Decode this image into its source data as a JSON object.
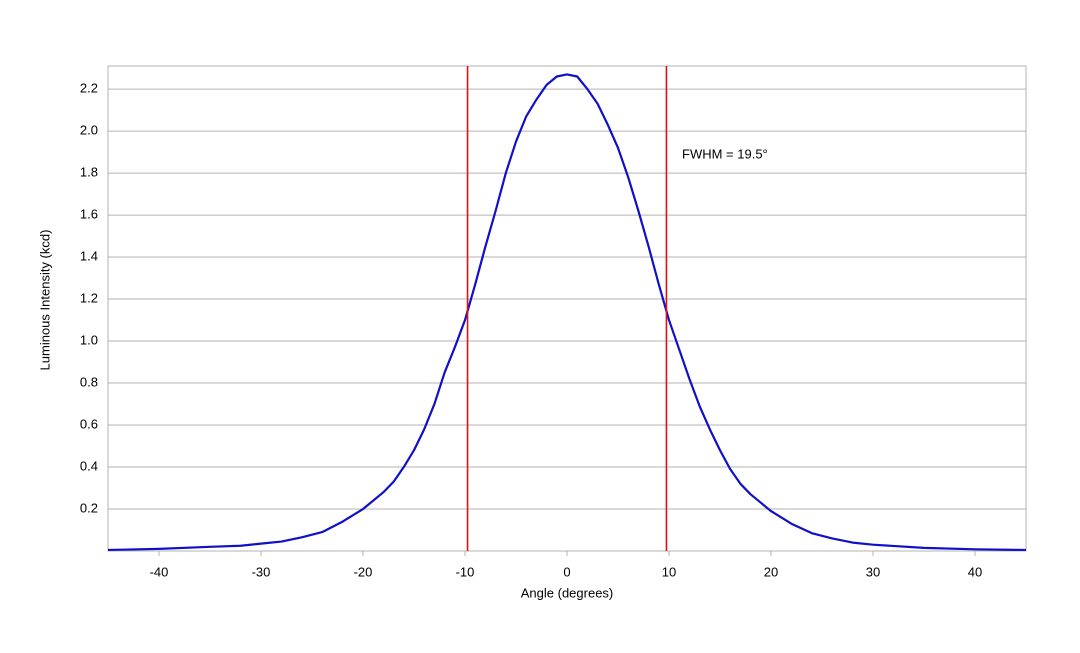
{
  "chart_data": {
    "type": "line",
    "xlabel": "Angle (degrees)",
    "ylabel": "Luminous Intensity (kcd)",
    "annotation": "FWHM = 19.5°",
    "x": [
      -45,
      -40,
      -35,
      -32,
      -30,
      -28,
      -26,
      -24,
      -22,
      -20,
      -19,
      -18,
      -17,
      -16,
      -15,
      -14,
      -13,
      -12,
      -11,
      -10,
      -9,
      -8,
      -7,
      -6,
      -5,
      -4,
      -3,
      -2,
      -1,
      0,
      1,
      2,
      3,
      4,
      5,
      6,
      7,
      8,
      9,
      10,
      11,
      12,
      13,
      14,
      15,
      16,
      17,
      18,
      19,
      20,
      22,
      24,
      26,
      28,
      30,
      35,
      40,
      45
    ],
    "values": [
      0.005,
      0.01,
      0.02,
      0.025,
      0.035,
      0.045,
      0.065,
      0.09,
      0.14,
      0.2,
      0.24,
      0.28,
      0.33,
      0.4,
      0.48,
      0.58,
      0.7,
      0.85,
      0.97,
      1.1,
      1.27,
      1.45,
      1.62,
      1.8,
      1.95,
      2.07,
      2.15,
      2.22,
      2.26,
      2.27,
      2.26,
      2.2,
      2.13,
      2.03,
      1.92,
      1.78,
      1.62,
      1.45,
      1.27,
      1.1,
      0.96,
      0.82,
      0.69,
      0.58,
      0.48,
      0.39,
      0.32,
      0.27,
      0.23,
      0.19,
      0.13,
      0.085,
      0.06,
      0.04,
      0.03,
      0.015,
      0.008,
      0.005
    ],
    "color": "#1010c8",
    "vlines": [
      {
        "x": -9.75,
        "color": "#e01010"
      },
      {
        "x": 9.75,
        "color": "#e01010"
      }
    ],
    "xlim": [
      -45,
      45
    ],
    "xticks": [
      -40,
      -30,
      -20,
      -10,
      0,
      10,
      20,
      30,
      40
    ],
    "ylim": [
      0,
      2.31
    ],
    "yticks": [
      0.2,
      0.4,
      0.6,
      0.8,
      {
        "value": 1,
        "label": "1.0"
      },
      1.2,
      1.4,
      1.6,
      1.8,
      {
        "value": 2,
        "label": "2.0"
      },
      2.2
    ],
    "grid": true
  }
}
